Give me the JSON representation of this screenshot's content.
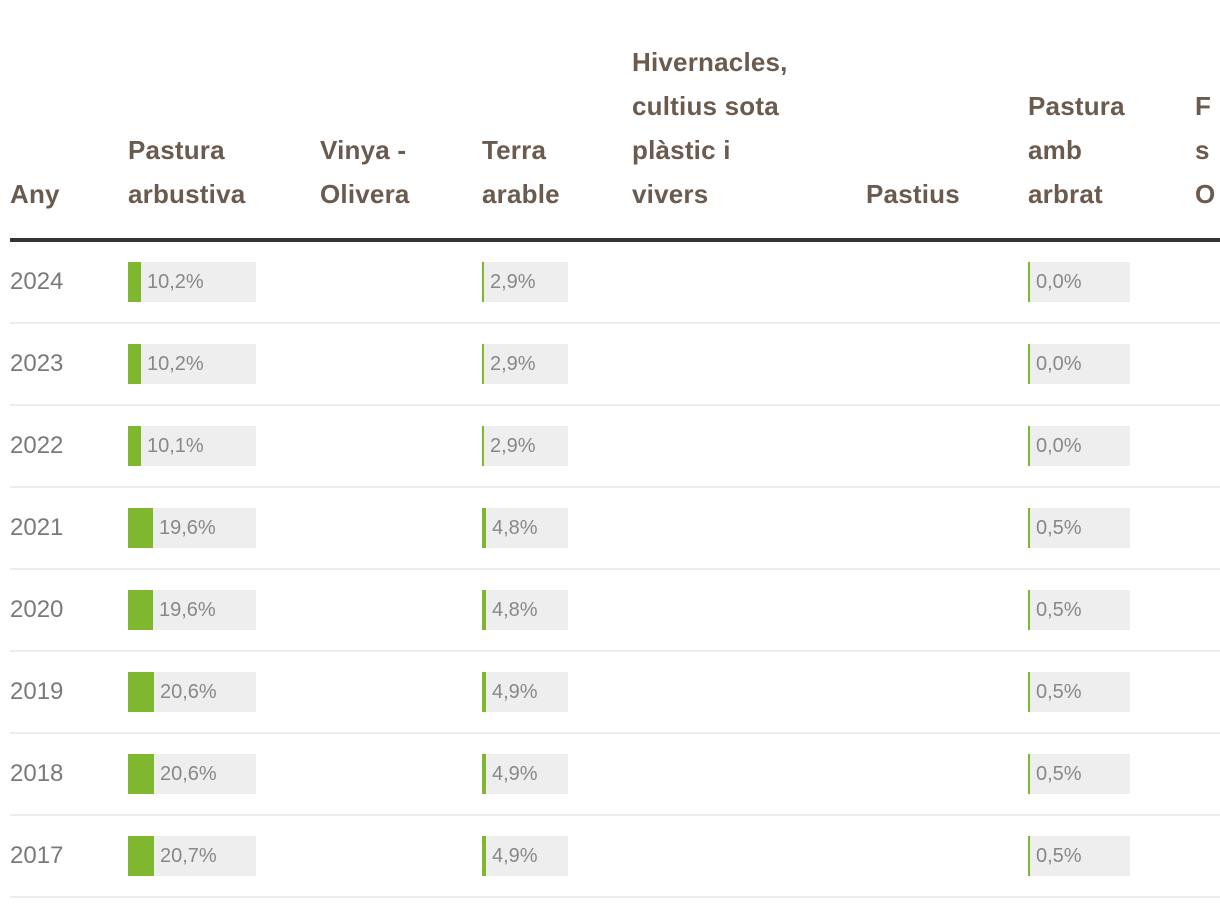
{
  "colors": {
    "header_text": "#6b5a4e",
    "bar_fill": "#7fb82f",
    "bar_track": "#eeeeee",
    "rule": "#333333"
  },
  "chart_data": {
    "type": "table",
    "columns": [
      "Any",
      "Pastura\narbustiva",
      "Vinya -\nOlivera",
      "Terra\narable",
      "Hivernacles,\ncultius sota\nplàstic i\nvivers",
      "Pastius",
      "Pastura\namb\narbrat",
      "F\ns\nO"
    ],
    "rows": [
      {
        "year": "2024",
        "pastura_arbustiva": "10,2%",
        "terra_arable": "2,9%",
        "pastura_amb_arbrat": "0,0%"
      },
      {
        "year": "2023",
        "pastura_arbustiva": "10,2%",
        "terra_arable": "2,9%",
        "pastura_amb_arbrat": "0,0%"
      },
      {
        "year": "2022",
        "pastura_arbustiva": "10,1%",
        "terra_arable": "2,9%",
        "pastura_amb_arbrat": "0,0%"
      },
      {
        "year": "2021",
        "pastura_arbustiva": "19,6%",
        "terra_arable": "4,8%",
        "pastura_amb_arbrat": "0,5%"
      },
      {
        "year": "2020",
        "pastura_arbustiva": "19,6%",
        "terra_arable": "4,8%",
        "pastura_amb_arbrat": "0,5%"
      },
      {
        "year": "2019",
        "pastura_arbustiva": "20,6%",
        "terra_arable": "4,9%",
        "pastura_amb_arbrat": "0,5%"
      },
      {
        "year": "2018",
        "pastura_arbustiva": "20,6%",
        "terra_arable": "4,9%",
        "pastura_amb_arbrat": "0,5%"
      },
      {
        "year": "2017",
        "pastura_arbustiva": "20,7%",
        "terra_arable": "4,9%",
        "pastura_amb_arbrat": "0,5%"
      }
    ]
  }
}
